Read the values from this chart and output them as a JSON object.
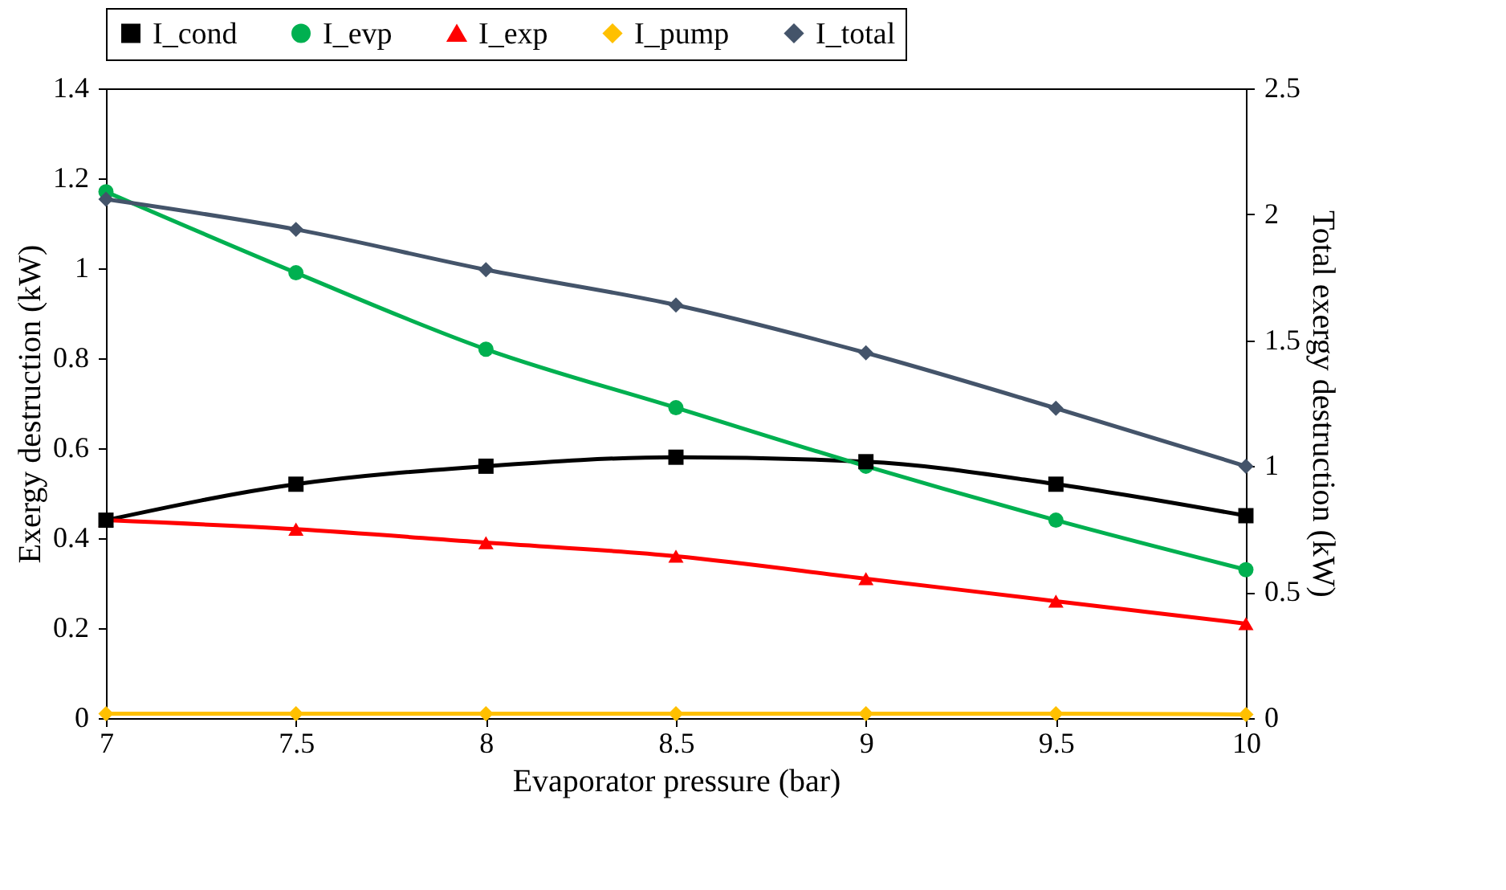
{
  "chart_data": {
    "type": "line",
    "xlabel": "Evaporator pressure (bar)",
    "ylabel": "Exergy destruction (kW)",
    "y2label": "Total exergy destruction (kW)",
    "x": [
      7,
      7.5,
      8,
      8.5,
      9,
      9.5,
      10
    ],
    "xlim": [
      7,
      10
    ],
    "xticks": [
      7,
      7.5,
      8,
      8.5,
      9,
      9.5,
      10
    ],
    "ylim": [
      0,
      1.4
    ],
    "yticks": [
      0,
      0.2,
      0.4,
      0.6,
      0.8,
      1,
      1.2,
      1.4
    ],
    "y2lim": [
      0,
      2.5
    ],
    "y2ticks": [
      0,
      0.5,
      1,
      1.5,
      2,
      2.5
    ],
    "legend": "top",
    "grid": false,
    "series": [
      {
        "name": "I_cond",
        "color": "#000000",
        "marker": "square",
        "values": [
          0.44,
          0.52,
          0.56,
          0.58,
          0.57,
          0.52,
          0.45
        ]
      },
      {
        "name": "I_evp",
        "color": "#00b050",
        "marker": "circle",
        "values": [
          1.17,
          0.99,
          0.82,
          0.69,
          0.56,
          0.44,
          0.33
        ]
      },
      {
        "name": "I_exp",
        "color": "#ff0000",
        "marker": "triangle",
        "values": [
          0.44,
          0.42,
          0.39,
          0.36,
          0.31,
          0.26,
          0.21
        ]
      },
      {
        "name": "I_pump",
        "color": "#ffc000",
        "marker": "diamond",
        "values": [
          0.01,
          0.01,
          0.01,
          0.01,
          0.01,
          0.01,
          0.008
        ]
      },
      {
        "name": "I_total",
        "color": "#44546a",
        "marker": "diamond",
        "axis": "y2",
        "values": [
          2.06,
          1.94,
          1.78,
          1.64,
          1.45,
          1.23,
          1.0
        ]
      }
    ]
  }
}
